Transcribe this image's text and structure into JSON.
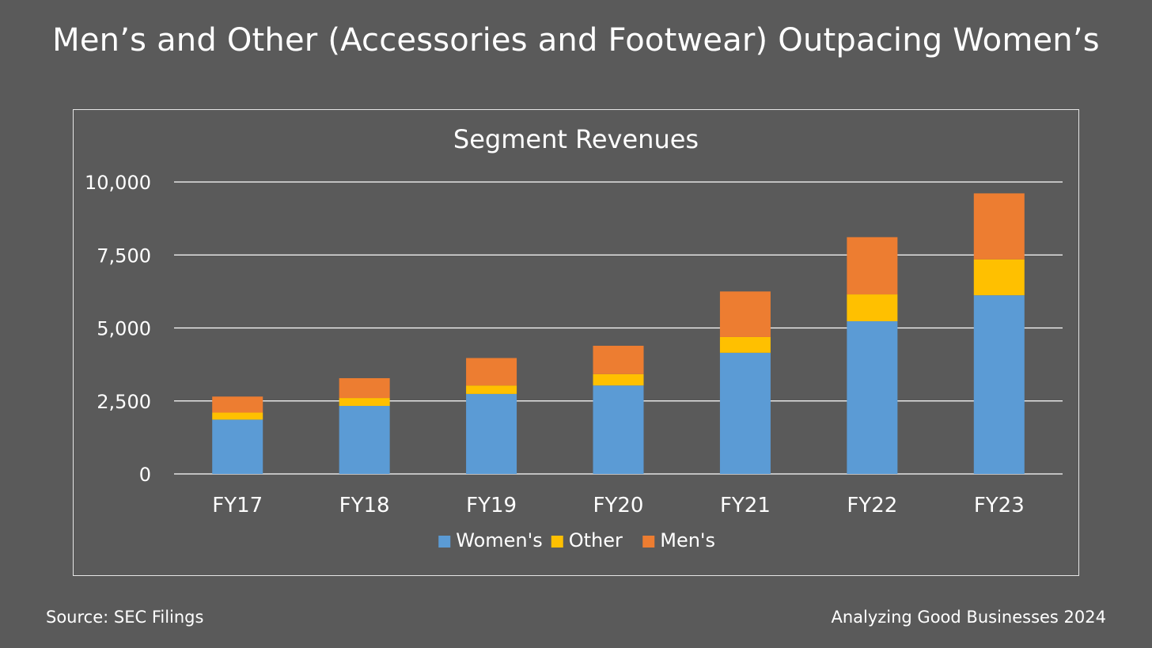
{
  "page": {
    "title": "Men’s and Other (Accessories and Footwear) Outpacing Women’s",
    "source": "Source: SEC Filings",
    "credit": "Analyzing Good Businesses 2024"
  },
  "colors": {
    "background": "#5a5a5a",
    "Women's": "#5b9bd5",
    "Other": "#ffc000",
    "Men's": "#ed7d31",
    "gridline": "#ffffff",
    "text": "#ffffff"
  },
  "chart_data": {
    "type": "bar",
    "stacked": true,
    "title": "Segment Revenues",
    "xlabel": "",
    "ylabel": "",
    "categories": [
      "FY17",
      "FY18",
      "FY19",
      "FY20",
      "FY21",
      "FY22",
      "FY23"
    ],
    "series": [
      {
        "name": "Women's",
        "values": [
          1860,
          2330,
          2740,
          3030,
          4150,
          5230,
          6120
        ]
      },
      {
        "name": "Other",
        "values": [
          240,
          270,
          290,
          390,
          540,
          920,
          1230
        ]
      },
      {
        "name": "Men's",
        "values": [
          550,
          680,
          940,
          970,
          1560,
          1960,
          2260
        ]
      }
    ],
    "ylim": [
      0,
      10000
    ],
    "yticks": [
      0,
      2500,
      5000,
      7500,
      10000
    ],
    "ytick_labels": [
      "0",
      "2,500",
      "5,000",
      "7,500",
      "10,000"
    ],
    "grid": true,
    "legend_position": "bottom"
  }
}
